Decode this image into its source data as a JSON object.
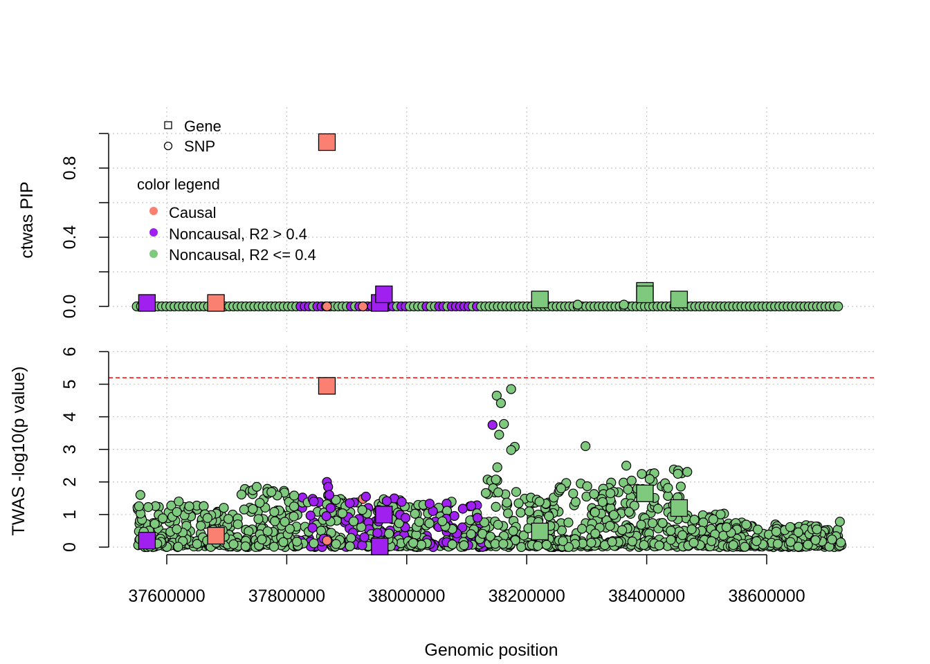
{
  "colors": {
    "causal": "#FA8072",
    "noncausal_high": "#A020F0",
    "noncausal_low": "#7FC97F",
    "threshold": "#FF0000",
    "grid": "#C8C8C8"
  },
  "legend": {
    "shape_items": [
      {
        "shape": "square",
        "label": "Gene"
      },
      {
        "shape": "circle",
        "label": "SNP"
      }
    ],
    "color_title": "color legend",
    "color_items": [
      {
        "key": "causal",
        "label": "Causal"
      },
      {
        "key": "noncausal_high",
        "label": "Noncausal, R2 > 0.4"
      },
      {
        "key": "noncausal_low",
        "label": "Noncausal, R2 <= 0.4"
      }
    ]
  },
  "chart_data": [
    {
      "type": "scatter",
      "panel": "top",
      "ylabel": "ctwas PIP",
      "xlabel": "",
      "xlim": [
        37540000,
        38730000
      ],
      "ylim": [
        0,
        1
      ],
      "yticks": [
        0.0,
        0.4,
        0.8
      ],
      "ytick_labels": [
        "0.0",
        "0.4",
        "0.8"
      ],
      "grid": true,
      "genes": [
        {
          "x": 37567000,
          "y": 0.02,
          "cat": "noncausal_high"
        },
        {
          "x": 37682000,
          "y": 0.02,
          "cat": "causal"
        },
        {
          "x": 37867000,
          "y": 0.95,
          "cat": "causal"
        },
        {
          "x": 37955000,
          "y": 0.02,
          "cat": "noncausal_high"
        },
        {
          "x": 37962000,
          "y": 0.07,
          "cat": "noncausal_high"
        },
        {
          "x": 38222000,
          "y": 0.04,
          "cat": "noncausal_low"
        },
        {
          "x": 38397000,
          "y": 0.09,
          "cat": "noncausal_low"
        },
        {
          "x": 38397000,
          "y": 0.07,
          "cat": "noncausal_low"
        },
        {
          "x": 38454000,
          "y": 0.04,
          "cat": "noncausal_low"
        }
      ],
      "snps": [
        {
          "x": 37867000,
          "y": 0.0,
          "cat": "causal"
        },
        {
          "x": 37927000,
          "y": 0.0,
          "cat": "causal"
        },
        {
          "x": 38285000,
          "y": 0.01,
          "cat": "noncausal_low"
        },
        {
          "x": 38362000,
          "y": 0.01,
          "cat": "noncausal_low"
        }
      ]
    },
    {
      "type": "scatter",
      "panel": "bottom",
      "ylabel": "TWAS -log10(p value)",
      "xlabel": "Genomic position",
      "xlim": [
        37540000,
        38730000
      ],
      "ylim": [
        0,
        6
      ],
      "xticks": [
        37600000,
        37800000,
        38000000,
        38200000,
        38400000,
        38600000
      ],
      "xtick_labels": [
        "37600000",
        "37800000",
        "38000000",
        "38200000",
        "38400000",
        "38600000"
      ],
      "yticks": [
        0,
        1,
        2,
        3,
        4,
        5,
        6
      ],
      "ytick_labels": [
        "0",
        "1",
        "2",
        "3",
        "4",
        "5",
        "6"
      ],
      "threshold": 5.2,
      "grid": true,
      "genes": [
        {
          "x": 37567000,
          "y": 0.2,
          "cat": "noncausal_high"
        },
        {
          "x": 37682000,
          "y": 0.35,
          "cat": "causal"
        },
        {
          "x": 37867000,
          "y": 4.95,
          "cat": "causal"
        },
        {
          "x": 37955000,
          "y": 0.02,
          "cat": "noncausal_high"
        },
        {
          "x": 37962000,
          "y": 1.0,
          "cat": "noncausal_high"
        },
        {
          "x": 38222000,
          "y": 0.48,
          "cat": "noncausal_low"
        },
        {
          "x": 38397000,
          "y": 1.65,
          "cat": "noncausal_low"
        },
        {
          "x": 38454000,
          "y": 1.2,
          "cat": "noncausal_low"
        }
      ],
      "snps": [
        {
          "x": 37867000,
          "y": 0.2,
          "cat": "causal"
        },
        {
          "x": 37927000,
          "y": 1.48,
          "cat": "causal"
        },
        {
          "x": 37845000,
          "y": 1.4,
          "cat": "noncausal_high"
        },
        {
          "x": 37867000,
          "y": 2.0,
          "cat": "noncausal_high"
        },
        {
          "x": 37869000,
          "y": 1.85,
          "cat": "noncausal_high"
        },
        {
          "x": 37871000,
          "y": 1.6,
          "cat": "noncausal_high"
        },
        {
          "x": 37873000,
          "y": 1.2,
          "cat": "noncausal_high"
        },
        {
          "x": 37866000,
          "y": 0.95,
          "cat": "noncausal_high"
        },
        {
          "x": 37905000,
          "y": 1.35,
          "cat": "noncausal_high"
        },
        {
          "x": 37932000,
          "y": 1.55,
          "cat": "noncausal_high"
        },
        {
          "x": 37998000,
          "y": 0.9,
          "cat": "noncausal_high"
        },
        {
          "x": 38118000,
          "y": 0.9,
          "cat": "noncausal_high"
        },
        {
          "x": 38143000,
          "y": 3.75,
          "cat": "noncausal_high"
        },
        {
          "x": 38162000,
          "y": 3.78,
          "cat": "noncausal_low"
        },
        {
          "x": 38174000,
          "y": 4.85,
          "cat": "noncausal_low"
        },
        {
          "x": 38150000,
          "y": 4.65,
          "cat": "noncausal_low"
        },
        {
          "x": 38157000,
          "y": 4.42,
          "cat": "noncausal_low"
        },
        {
          "x": 38154000,
          "y": 3.45,
          "cat": "noncausal_low"
        },
        {
          "x": 38180000,
          "y": 3.08,
          "cat": "noncausal_low"
        },
        {
          "x": 38174000,
          "y": 2.98,
          "cat": "noncausal_low"
        },
        {
          "x": 38151000,
          "y": 2.45,
          "cat": "noncausal_low"
        },
        {
          "x": 38298000,
          "y": 3.1,
          "cat": "noncausal_low"
        },
        {
          "x": 37556000,
          "y": 1.6,
          "cat": "noncausal_low"
        },
        {
          "x": 37620000,
          "y": 1.4,
          "cat": "noncausal_low"
        },
        {
          "x": 37750000,
          "y": 1.85,
          "cat": "noncausal_low"
        },
        {
          "x": 38366000,
          "y": 2.5,
          "cat": "noncausal_low"
        },
        {
          "x": 38452000,
          "y": 2.25,
          "cat": "noncausal_low"
        },
        {
          "x": 38722000,
          "y": 0.78,
          "cat": "noncausal_low"
        }
      ]
    }
  ]
}
